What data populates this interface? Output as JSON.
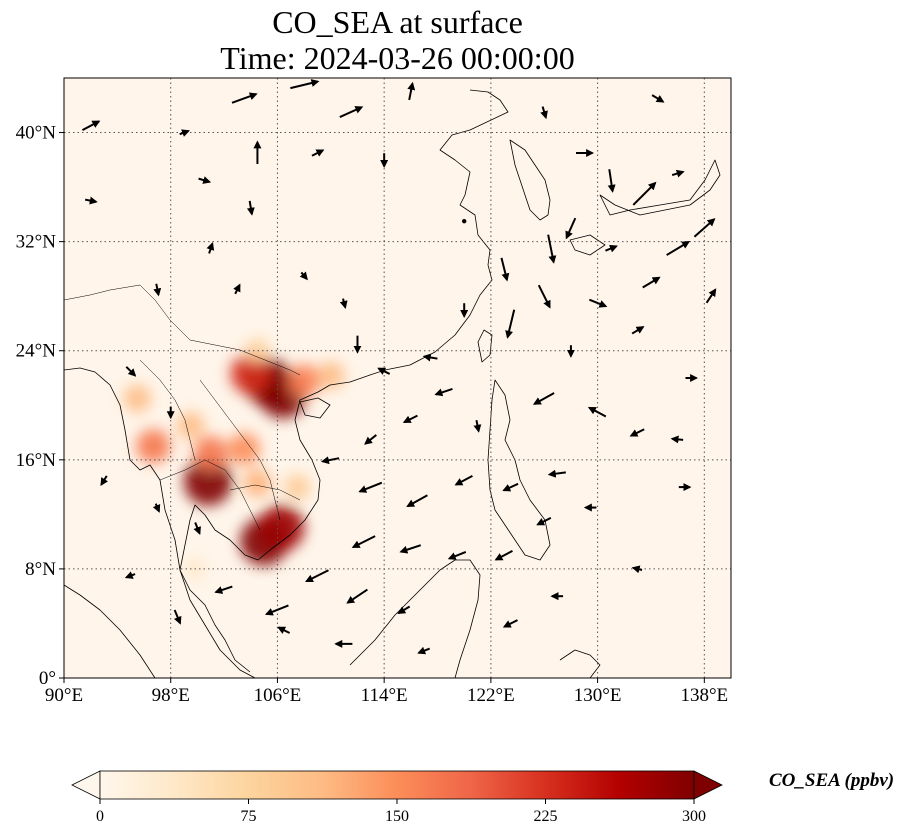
{
  "title": {
    "line1": "CO_SEA at surface",
    "line2": "Time: 2024-03-26 00:00:00"
  },
  "map": {
    "lon_range": [
      90,
      140
    ],
    "lat_range": [
      0,
      44
    ],
    "lon_ticks": [
      {
        "value": 90,
        "label": "90°E"
      },
      {
        "value": 98,
        "label": "98°E"
      },
      {
        "value": 106,
        "label": "106°E"
      },
      {
        "value": 114,
        "label": "114°E"
      },
      {
        "value": 122,
        "label": "122°E"
      },
      {
        "value": 130,
        "label": "130°E"
      },
      {
        "value": 138,
        "label": "138°E"
      }
    ],
    "lat_ticks": [
      {
        "value": 0,
        "label": "0°"
      },
      {
        "value": 8,
        "label": "8°N"
      },
      {
        "value": 16,
        "label": "16°N"
      },
      {
        "value": 24,
        "label": "24°N"
      },
      {
        "value": 32,
        "label": "32°N"
      },
      {
        "value": 40,
        "label": "40°N"
      }
    ],
    "gridlines": true,
    "background_color": "#fff5ea",
    "coastline_color": "#000000"
  },
  "colorbar": {
    "label": "CO_SEA (ppbv)",
    "cmap": "OrRd",
    "min": 0,
    "max": 300,
    "extend": "both",
    "ticks": [
      {
        "value": 0,
        "label": "0"
      },
      {
        "value": 75,
        "label": "75"
      },
      {
        "value": 150,
        "label": "150"
      },
      {
        "value": 225,
        "label": "225"
      },
      {
        "value": 300,
        "label": "300"
      }
    ],
    "stops": [
      "#fff7ec",
      "#fee8c8",
      "#fdd49e",
      "#fdbb84",
      "#fc8d59",
      "#ef6548",
      "#d7301f",
      "#b30000",
      "#7f0000"
    ]
  },
  "co_hotspots": [
    {
      "lon": 105.3,
      "lat": 21.7,
      "value": 300
    },
    {
      "lon": 106.4,
      "lat": 20.8,
      "value": 300
    },
    {
      "lon": 104.0,
      "lat": 22.3,
      "value": 230
    },
    {
      "lon": 108.0,
      "lat": 21.8,
      "value": 160
    },
    {
      "lon": 110.0,
      "lat": 22.2,
      "value": 110
    },
    {
      "lon": 104.5,
      "lat": 24.0,
      "value": 80
    },
    {
      "lon": 100.8,
      "lat": 14.4,
      "value": 300
    },
    {
      "lon": 101.0,
      "lat": 16.5,
      "value": 170
    },
    {
      "lon": 103.5,
      "lat": 16.8,
      "value": 150
    },
    {
      "lon": 104.5,
      "lat": 14.3,
      "value": 120
    },
    {
      "lon": 99.5,
      "lat": 18.5,
      "value": 110
    },
    {
      "lon": 96.7,
      "lat": 17.0,
      "value": 170
    },
    {
      "lon": 95.5,
      "lat": 20.5,
      "value": 110
    },
    {
      "lon": 105.0,
      "lat": 10.0,
      "value": 300
    },
    {
      "lon": 106.3,
      "lat": 11.0,
      "value": 280
    },
    {
      "lon": 107.5,
      "lat": 14.0,
      "value": 90
    },
    {
      "lon": 99.8,
      "lat": 8.0,
      "value": 40
    }
  ],
  "wind_vectors": [
    {
      "lon": 92.0,
      "lat": 40.5,
      "u": 1.5,
      "v": 0.8
    },
    {
      "lon": 99.0,
      "lat": 40.0,
      "u": 0.8,
      "v": 0.3
    },
    {
      "lon": 103.5,
      "lat": 42.5,
      "u": 2.2,
      "v": 0.8
    },
    {
      "lon": 108.0,
      "lat": 43.5,
      "u": 2.5,
      "v": 0.6
    },
    {
      "lon": 111.5,
      "lat": 41.5,
      "u": 2.0,
      "v": 0.9
    },
    {
      "lon": 116.0,
      "lat": 43.0,
      "u": 0.3,
      "v": 1.5
    },
    {
      "lon": 100.5,
      "lat": 36.5,
      "u": 1.0,
      "v": -0.3
    },
    {
      "lon": 104.5,
      "lat": 38.5,
      "u": 0.0,
      "v": 2.0
    },
    {
      "lon": 109.0,
      "lat": 38.5,
      "u": 1.0,
      "v": 0.5
    },
    {
      "lon": 114.0,
      "lat": 38.0,
      "u": 0.0,
      "v": -1.2
    },
    {
      "lon": 92.0,
      "lat": 35.0,
      "u": 1.0,
      "v": -0.2
    },
    {
      "lon": 104.0,
      "lat": 34.5,
      "u": 0.2,
      "v": -1.2
    },
    {
      "lon": 101.0,
      "lat": 31.5,
      "u": 0.3,
      "v": 0.9
    },
    {
      "lon": 97.0,
      "lat": 28.5,
      "u": 0.2,
      "v": -1.0
    },
    {
      "lon": 103.0,
      "lat": 28.5,
      "u": 0.4,
      "v": 0.8
    },
    {
      "lon": 108.0,
      "lat": 29.5,
      "u": 0.5,
      "v": -0.6
    },
    {
      "lon": 111.0,
      "lat": 27.5,
      "u": 0.2,
      "v": -0.8
    },
    {
      "lon": 112.0,
      "lat": 24.5,
      "u": 0.0,
      "v": -1.5
    },
    {
      "lon": 114.0,
      "lat": 22.5,
      "u": -1.0,
      "v": 0.5
    },
    {
      "lon": 117.5,
      "lat": 23.5,
      "u": -1.2,
      "v": 0.2
    },
    {
      "lon": 118.5,
      "lat": 21.0,
      "u": -1.5,
      "v": -0.5
    },
    {
      "lon": 120.0,
      "lat": 27.0,
      "u": 0.0,
      "v": -1.2
    },
    {
      "lon": 123.0,
      "lat": 30.0,
      "u": 0.5,
      "v": -2.0
    },
    {
      "lon": 123.5,
      "lat": 26.0,
      "u": -0.6,
      "v": -2.5
    },
    {
      "lon": 126.0,
      "lat": 28.0,
      "u": 1.0,
      "v": -2.0
    },
    {
      "lon": 126.5,
      "lat": 31.5,
      "u": 0.5,
      "v": -2.5
    },
    {
      "lon": 128.0,
      "lat": 33.0,
      "u": -0.8,
      "v": -1.8
    },
    {
      "lon": 131.0,
      "lat": 31.5,
      "u": 1.0,
      "v": 0.4
    },
    {
      "lon": 130.0,
      "lat": 27.5,
      "u": 1.5,
      "v": -0.6
    },
    {
      "lon": 134.0,
      "lat": 29.0,
      "u": 1.5,
      "v": 0.9
    },
    {
      "lon": 136.0,
      "lat": 31.5,
      "u": 2.0,
      "v": 1.2
    },
    {
      "lon": 138.0,
      "lat": 33.0,
      "u": 1.8,
      "v": 1.6
    },
    {
      "lon": 131.0,
      "lat": 36.5,
      "u": 0.3,
      "v": -2.0
    },
    {
      "lon": 133.5,
      "lat": 35.5,
      "u": 2.0,
      "v": 2.0
    },
    {
      "lon": 129.0,
      "lat": 38.5,
      "u": 1.5,
      "v": 0.0
    },
    {
      "lon": 126.0,
      "lat": 41.5,
      "u": 0.3,
      "v": -1.0
    },
    {
      "lon": 134.5,
      "lat": 42.5,
      "u": 1.0,
      "v": -0.6
    },
    {
      "lon": 136.0,
      "lat": 37.0,
      "u": 1.0,
      "v": 0.3
    },
    {
      "lon": 138.5,
      "lat": 28.0,
      "u": 0.8,
      "v": 1.2
    },
    {
      "lon": 126.0,
      "lat": 20.5,
      "u": -1.8,
      "v": -1.0
    },
    {
      "lon": 130.0,
      "lat": 19.5,
      "u": -1.5,
      "v": 0.8
    },
    {
      "lon": 133.0,
      "lat": 18.0,
      "u": -1.2,
      "v": -0.6
    },
    {
      "lon": 136.0,
      "lat": 17.5,
      "u": -1.0,
      "v": 0.1
    },
    {
      "lon": 121.0,
      "lat": 18.5,
      "u": 0.2,
      "v": -1.0
    },
    {
      "lon": 116.0,
      "lat": 19.0,
      "u": -1.2,
      "v": -0.6
    },
    {
      "lon": 113.0,
      "lat": 17.5,
      "u": -1.0,
      "v": -0.8
    },
    {
      "lon": 110.0,
      "lat": 16.0,
      "u": -1.5,
      "v": -0.3
    },
    {
      "lon": 113.0,
      "lat": 14.0,
      "u": -2.0,
      "v": -0.8
    },
    {
      "lon": 116.5,
      "lat": 13.0,
      "u": -1.8,
      "v": -1.0
    },
    {
      "lon": 120.0,
      "lat": 14.5,
      "u": -1.5,
      "v": -0.8
    },
    {
      "lon": 123.5,
      "lat": 14.0,
      "u": -1.3,
      "v": -0.6
    },
    {
      "lon": 127.0,
      "lat": 15.0,
      "u": -1.5,
      "v": -0.2
    },
    {
      "lon": 126.0,
      "lat": 11.5,
      "u": -1.2,
      "v": -0.6
    },
    {
      "lon": 129.5,
      "lat": 12.5,
      "u": -1.0,
      "v": 0.0
    },
    {
      "lon": 136.5,
      "lat": 14.0,
      "u": 1.0,
      "v": 0.0
    },
    {
      "lon": 112.5,
      "lat": 10.0,
      "u": -2.0,
      "v": -1.0
    },
    {
      "lon": 116.0,
      "lat": 9.5,
      "u": -1.8,
      "v": -0.6
    },
    {
      "lon": 119.5,
      "lat": 9.0,
      "u": -1.5,
      "v": -0.6
    },
    {
      "lon": 123.0,
      "lat": 9.0,
      "u": -1.5,
      "v": -0.8
    },
    {
      "lon": 109.0,
      "lat": 7.5,
      "u": -2.0,
      "v": -1.0
    },
    {
      "lon": 112.0,
      "lat": 6.0,
      "u": -1.8,
      "v": -1.2
    },
    {
      "lon": 115.5,
      "lat": 5.0,
      "u": -1.0,
      "v": -0.6
    },
    {
      "lon": 106.0,
      "lat": 5.0,
      "u": -2.0,
      "v": -0.8
    },
    {
      "lon": 102.0,
      "lat": 6.5,
      "u": -1.5,
      "v": -0.5
    },
    {
      "lon": 98.5,
      "lat": 4.5,
      "u": 0.5,
      "v": -1.2
    },
    {
      "lon": 95.0,
      "lat": 7.5,
      "u": -0.8,
      "v": -0.3
    },
    {
      "lon": 100.0,
      "lat": 11.0,
      "u": 0.4,
      "v": -1.0
    },
    {
      "lon": 97.0,
      "lat": 12.5,
      "u": 0.3,
      "v": -0.7
    },
    {
      "lon": 93.0,
      "lat": 14.5,
      "u": -0.5,
      "v": -0.8
    },
    {
      "lon": 98.0,
      "lat": 19.5,
      "u": 0.0,
      "v": -1.0
    },
    {
      "lon": 95.0,
      "lat": 22.5,
      "u": 0.8,
      "v": -0.8
    },
    {
      "lon": 106.5,
      "lat": 3.5,
      "u": -1.0,
      "v": 0.5
    },
    {
      "lon": 111.0,
      "lat": 2.5,
      "u": -1.5,
      "v": 0.0
    },
    {
      "lon": 117.0,
      "lat": 2.0,
      "u": -1.0,
      "v": -0.4
    },
    {
      "lon": 123.5,
      "lat": 4.0,
      "u": -1.2,
      "v": -0.6
    },
    {
      "lon": 127.0,
      "lat": 6.0,
      "u": -1.0,
      "v": 0.0
    },
    {
      "lon": 133.0,
      "lat": 8.0,
      "u": -0.8,
      "v": 0.2
    },
    {
      "lon": 137.0,
      "lat": 22.0,
      "u": 1.0,
      "v": 0.0
    },
    {
      "lon": 128.0,
      "lat": 24.0,
      "u": 0.0,
      "v": -1.0
    },
    {
      "lon": 133.0,
      "lat": 25.5,
      "u": 1.0,
      "v": 0.6
    },
    {
      "lon": 120.0,
      "lat": 33.5,
      "u": 0.0,
      "v": 0.0
    }
  ]
}
